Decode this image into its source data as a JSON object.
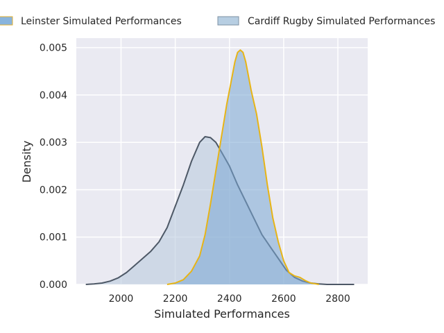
{
  "chart_data": {
    "type": "area",
    "title": "",
    "xlabel": "Simulated Performances",
    "ylabel": "Density",
    "xlim": [
      1835,
      2910
    ],
    "ylim": [
      0,
      0.0052
    ],
    "x_ticks": [
      2000,
      2200,
      2400,
      2600,
      2800
    ],
    "y_ticks": [
      0.0,
      0.001,
      0.002,
      0.003,
      0.004,
      0.005
    ],
    "x_tick_labels": [
      "2000",
      "2200",
      "2400",
      "2600",
      "2800"
    ],
    "y_tick_labels": [
      "0.000",
      "0.001",
      "0.002",
      "0.003",
      "0.004",
      "0.005"
    ],
    "grid": true,
    "legend_position": "top-center",
    "legend": [
      {
        "label": "Leinster Simulated Performances",
        "fill": "#89b4dc",
        "stroke": "#e6b12e"
      },
      {
        "label": "Cardiff Rugby Simulated Performances",
        "fill": "#b7cee2",
        "stroke": "#7d90a3"
      }
    ],
    "series": [
      {
        "name": "Leinster Simulated Performances",
        "fill": "#7aa8d3",
        "fill_opacity": 0.55,
        "line_color": "#e7b416",
        "x": [
          2170,
          2200,
          2230,
          2260,
          2290,
          2310,
          2330,
          2350,
          2370,
          2390,
          2410,
          2420,
          2430,
          2440,
          2450,
          2460,
          2470,
          2480,
          2500,
          2520,
          2540,
          2560,
          2580,
          2600,
          2620,
          2640,
          2660,
          2680,
          2700,
          2720,
          2730
        ],
        "y": [
          0.0,
          3e-05,
          0.0001,
          0.00028,
          0.0006,
          0.00105,
          0.0017,
          0.0024,
          0.0031,
          0.0038,
          0.0044,
          0.0047,
          0.0049,
          0.00495,
          0.0049,
          0.0047,
          0.0044,
          0.0041,
          0.0036,
          0.0029,
          0.0021,
          0.0014,
          0.0009,
          0.0005,
          0.00025,
          0.00018,
          0.00015,
          8e-05,
          3e-05,
          1e-05,
          0.0
        ]
      },
      {
        "name": "Cardiff Rugby Simulated Performances",
        "fill": "#b6c8dc",
        "fill_opacity": 0.55,
        "line_color": "#4d5866",
        "x": [
          1870,
          1900,
          1930,
          1960,
          1990,
          2020,
          2050,
          2080,
          2110,
          2140,
          2170,
          2200,
          2230,
          2260,
          2290,
          2310,
          2330,
          2350,
          2370,
          2400,
          2430,
          2460,
          2490,
          2520,
          2550,
          2580,
          2610,
          2640,
          2670,
          2700,
          2730,
          2760,
          2800,
          2860
        ],
        "y": [
          0.0,
          1e-05,
          3e-05,
          7e-05,
          0.00014,
          0.00025,
          0.0004,
          0.00055,
          0.0007,
          0.0009,
          0.0012,
          0.00165,
          0.0021,
          0.0026,
          0.003,
          0.00312,
          0.0031,
          0.003,
          0.0028,
          0.0025,
          0.0021,
          0.00175,
          0.0014,
          0.00105,
          0.0008,
          0.00055,
          0.0003,
          0.00015,
          7e-05,
          3e-05,
          1e-05,
          0.0,
          0.0,
          0.0
        ]
      }
    ]
  }
}
